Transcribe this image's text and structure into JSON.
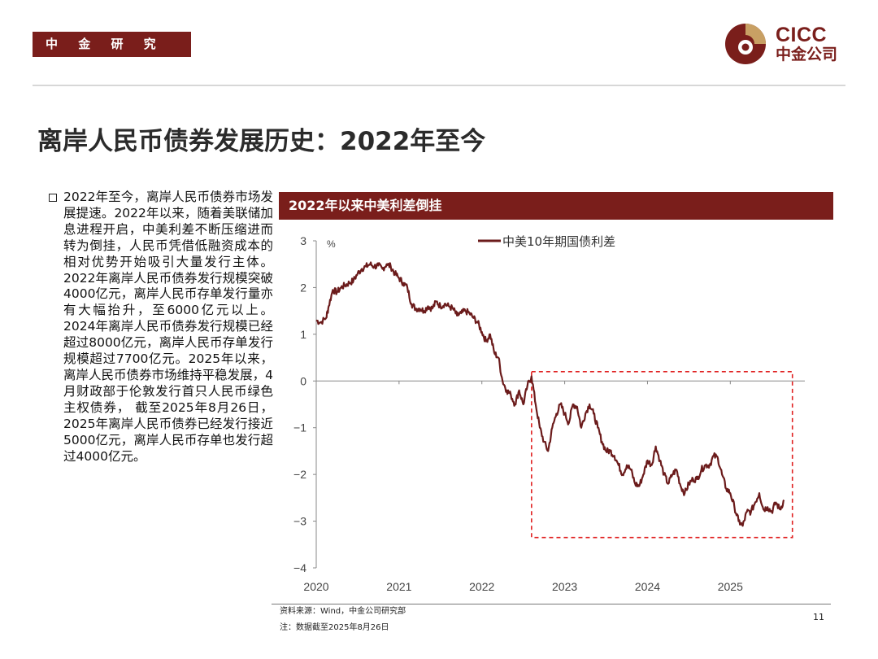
{
  "header": {
    "section_tag": "中 金 研 究 部",
    "logo_text_en": "CICC",
    "logo_text_cn": "中金公司",
    "brand_color": "#7a1e1b",
    "logo_accent": "#c8a064"
  },
  "title": "离岸人民币债券发展历史：2022年至今",
  "body_text": "2022年至今，离岸人民币债券市场发展提速。2022年以来，随着美联储加息进程开启，中美利差不断压缩进而转为倒挂，人民币凭借低融资成本的相对优势开始吸引大量发行主体。2022年离岸人民币债券发行规模突破4000亿元，离岸人民币存单发行量亦有大幅抬升，至6000亿元以上。2024年离岸人民币债券发行规模已经超过8000亿元，离岸人民币存单发行规模超过7700亿元。2025年以来，离岸人民币债券市场维持平稳发展，4月财政部于伦敦发行首只人民币绿色主权债券，  截至2025年8月26日，2025年离岸人民币债券已经发行接近5000亿元，离岸人民币存单也发行超过4000亿元。",
  "chart_header": "2022年以来中美利差倒挂",
  "footer": {
    "source": "资料来源：Wind，中金公司研究部",
    "note": "注：数据截至2025年8月26日",
    "page": "11"
  },
  "chart_data": {
    "type": "line",
    "title": "2022年以来中美利差倒挂",
    "ylabel": "%",
    "ylim": [
      -4,
      3
    ],
    "yticks": [
      "3",
      "2",
      "1",
      "0",
      "−1",
      "−2",
      "−3",
      "−4"
    ],
    "xlim": [
      2020.0,
      2025.9
    ],
    "xticks": [
      "2020",
      "2021",
      "2022",
      "2023",
      "2024",
      "2025"
    ],
    "legend_position": "top",
    "grid": false,
    "line_color": "#6b1b1b",
    "highlight_box": {
      "x": [
        2022.6,
        2025.75
      ],
      "y": [
        -3.35,
        0.2
      ],
      "color": "#e02020",
      "style": "dashed"
    },
    "series": [
      {
        "name": "中美10年期国债利差",
        "x": [
          2020.0,
          2020.05,
          2020.12,
          2020.15,
          2020.2,
          2020.25,
          2020.3,
          2020.35,
          2020.4,
          2020.45,
          2020.5,
          2020.55,
          2020.6,
          2020.65,
          2020.7,
          2020.75,
          2020.8,
          2020.85,
          2020.9,
          2020.95,
          2021.0,
          2021.05,
          2021.1,
          2021.15,
          2021.2,
          2021.25,
          2021.3,
          2021.35,
          2021.4,
          2021.45,
          2021.5,
          2021.55,
          2021.6,
          2021.65,
          2021.7,
          2021.75,
          2021.8,
          2021.85,
          2021.9,
          2021.95,
          2022.0,
          2022.05,
          2022.1,
          2022.15,
          2022.2,
          2022.25,
          2022.3,
          2022.35,
          2022.4,
          2022.45,
          2022.5,
          2022.55,
          2022.6,
          2022.65,
          2022.7,
          2022.75,
          2022.8,
          2022.85,
          2022.9,
          2022.95,
          2023.0,
          2023.05,
          2023.1,
          2023.15,
          2023.2,
          2023.25,
          2023.3,
          2023.35,
          2023.4,
          2023.45,
          2023.5,
          2023.55,
          2023.6,
          2023.65,
          2023.7,
          2023.75,
          2023.8,
          2023.85,
          2023.9,
          2023.95,
          2024.0,
          2024.05,
          2024.1,
          2024.15,
          2024.2,
          2024.25,
          2024.3,
          2024.35,
          2024.4,
          2024.45,
          2024.5,
          2024.55,
          2024.6,
          2024.65,
          2024.7,
          2024.75,
          2024.8,
          2024.85,
          2024.9,
          2024.95,
          2025.0,
          2025.05,
          2025.1,
          2025.15,
          2025.2,
          2025.25,
          2025.3,
          2025.35,
          2025.4,
          2025.45,
          2025.5,
          2025.55,
          2025.6,
          2025.65
        ],
        "y": [
          1.3,
          1.25,
          1.35,
          1.6,
          1.95,
          1.9,
          2.0,
          2.05,
          2.1,
          2.15,
          2.3,
          2.4,
          2.45,
          2.5,
          2.45,
          2.47,
          2.4,
          2.5,
          2.45,
          2.3,
          2.2,
          2.1,
          2.0,
          1.65,
          1.55,
          1.55,
          1.5,
          1.6,
          1.55,
          1.7,
          1.6,
          1.65,
          1.6,
          1.55,
          1.4,
          1.45,
          1.5,
          1.45,
          1.35,
          1.25,
          1.05,
          0.85,
          1.0,
          0.6,
          0.5,
          0.0,
          -0.2,
          -0.3,
          -0.5,
          -0.2,
          -0.5,
          -0.1,
          0.1,
          -0.5,
          -1.0,
          -1.3,
          -1.5,
          -1.0,
          -0.7,
          -0.5,
          -0.7,
          -0.9,
          -0.5,
          -0.55,
          -1.0,
          -0.7,
          -0.5,
          -0.7,
          -1.0,
          -1.3,
          -1.5,
          -1.5,
          -1.6,
          -1.8,
          -2.0,
          -1.8,
          -1.9,
          -2.2,
          -2.25,
          -2.0,
          -1.7,
          -1.8,
          -1.4,
          -1.7,
          -2.0,
          -2.2,
          -2.0,
          -1.9,
          -2.25,
          -2.4,
          -2.2,
          -2.1,
          -2.1,
          -1.9,
          -1.8,
          -1.8,
          -1.6,
          -1.65,
          -2.0,
          -2.3,
          -2.4,
          -2.7,
          -3.0,
          -3.1,
          -2.8,
          -2.8,
          -2.6,
          -2.4,
          -2.75,
          -2.7,
          -2.8,
          -2.6,
          -2.75,
          -2.55
        ]
      }
    ]
  }
}
